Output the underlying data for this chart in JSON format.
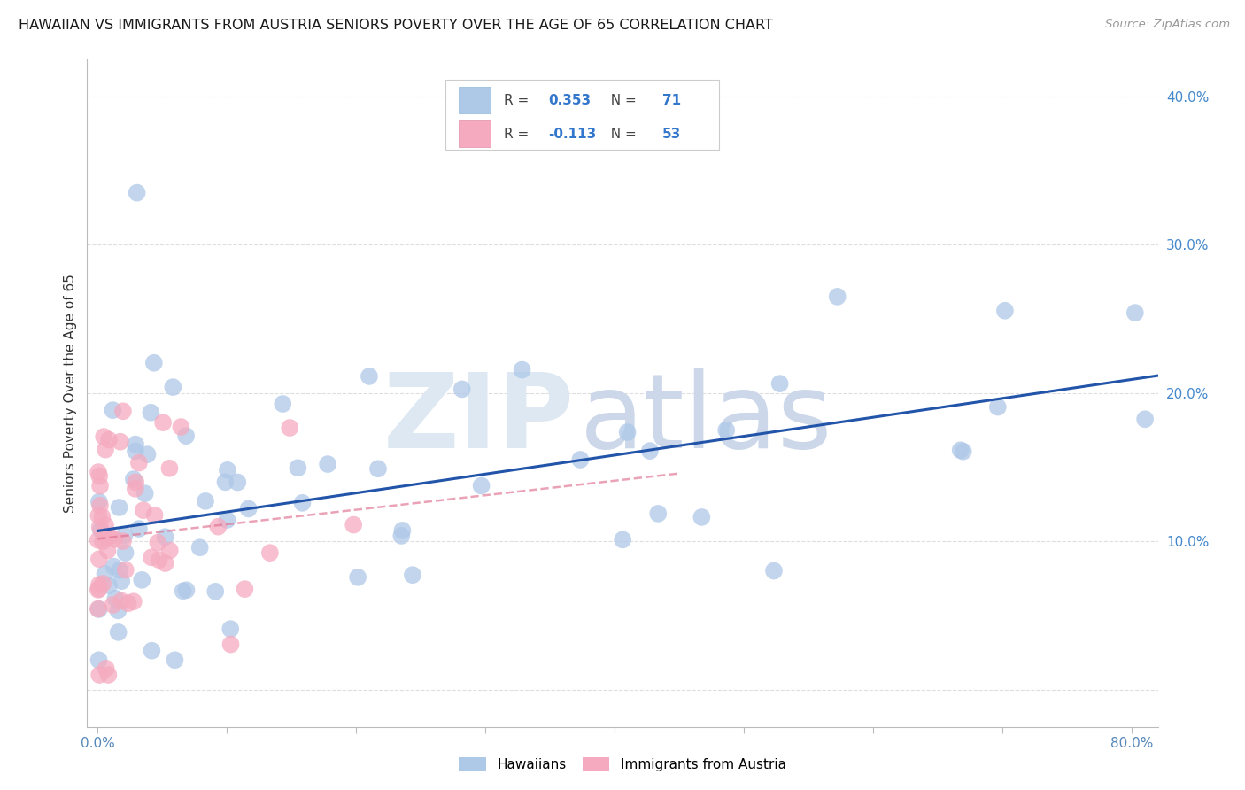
{
  "title": "HAWAIIAN VS IMMIGRANTS FROM AUSTRIA SENIORS POVERTY OVER THE AGE OF 65 CORRELATION CHART",
  "source": "Source: ZipAtlas.com",
  "ylabel": "Seniors Poverty Over the Age of 65",
  "xlim": [
    -0.008,
    0.82
  ],
  "ylim": [
    -0.025,
    0.425
  ],
  "xtick_vals": [
    0.0,
    0.1,
    0.2,
    0.3,
    0.4,
    0.5,
    0.6,
    0.7,
    0.8
  ],
  "xtick_labs": [
    "0.0%",
    "",
    "",
    "",
    "",
    "",
    "",
    "",
    "80.0%"
  ],
  "ytick_vals_right": [
    0.1,
    0.2,
    0.3,
    0.4
  ],
  "ytick_labs_right": [
    "10.0%",
    "20.0%",
    "30.0%",
    "40.0%"
  ],
  "R_hawaiian": 0.353,
  "N_hawaiian": 71,
  "R_austrian": -0.113,
  "N_austrian": 53,
  "color_hawaiian_fill": "#aec8e8",
  "color_hawaiian_edge": "#aec8e8",
  "color_austrian_fill": "#f5aabf",
  "color_austrian_edge": "#f5aabf",
  "color_line_hawaiian": "#2255aa",
  "color_line_austrian": "#e07090",
  "watermark_zip_color": "#dde8f2",
  "watermark_atlas_color": "#ccd8ea",
  "background_color": "#ffffff",
  "grid_color": "#dedede",
  "title_color": "#1a1a1a",
  "source_color": "#999999",
  "axis_label_color": "#333333",
  "right_tick_color": "#4488cc",
  "legend_edge_color": "#cccccc"
}
